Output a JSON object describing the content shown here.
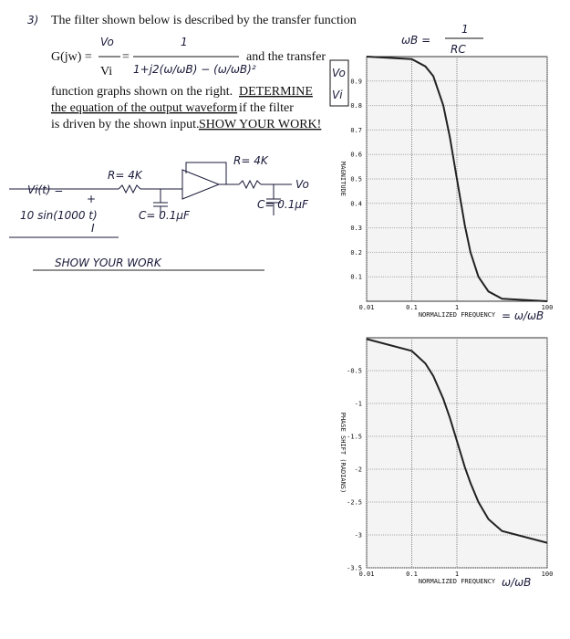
{
  "document": {
    "problem_number": "3)",
    "intro": "The filter shown below is described by the transfer function",
    "lhs": "G(jw) =",
    "ratio_top": "Vo",
    "ratio_bottom": "Vi",
    "numerator": "1",
    "denominator": "1+j2(ω/ωB) − (ω/ωB)²",
    "and_transfer": "and the transfer",
    "line2": "function graphs shown on the right.",
    "determine": "DETERMINE",
    "line3": "the equation of the output waveform",
    "line3b": "if the filter",
    "line4": "is driven by the shown input.",
    "show": "SHOW YOUR WORK!",
    "wb_lhs": "ωB =",
    "wb_num": "1",
    "wb_den": "RC",
    "side_top": "Vo",
    "side_bottom": "Vi",
    "circuit": {
      "r1": "R= 4K",
      "r2": "R= 4K",
      "c1": "C= 0.1μF",
      "c2": "C= 0.1μF",
      "vi": "Vi(t) =",
      "vi_expr": "10 sin(1000 t)",
      "vo": "Vo",
      "plus": "+",
      "ground_label": "I"
    },
    "show_your_work": "SHOW YOUR WORK"
  },
  "chart_data": [
    {
      "type": "line",
      "y_label": "MAGNITUDE",
      "x_label": "NORMALIZED FREQUENCY",
      "annotation": "= ω/ωB",
      "x": [
        0.01,
        0.1,
        0.2,
        0.3,
        0.5,
        0.7,
        1,
        1.5,
        2,
        3,
        5,
        10,
        100
      ],
      "values": [
        1,
        0.99,
        0.96,
        0.92,
        0.8,
        0.67,
        0.5,
        0.31,
        0.2,
        0.1,
        0.04,
        0.01,
        0
      ],
      "xlim": [
        0.01,
        100
      ],
      "ylim": [
        0,
        1
      ],
      "log_x": true,
      "grid": true,
      "color": "#222222",
      "xticks": [
        0.01,
        0.1,
        1,
        100
      ],
      "yticks": [
        0.1,
        0.2,
        0.3,
        0.4,
        0.5,
        0.6,
        0.7,
        0.8,
        0.9
      ]
    },
    {
      "type": "line",
      "y_label": "PHASE SHIFT (RADIANS)",
      "x_label": "NORMALIZED FREQUENCY",
      "annotation": "ω/ωB",
      "x": [
        0.01,
        0.1,
        0.2,
        0.3,
        0.5,
        0.7,
        1,
        1.5,
        2,
        3,
        5,
        10,
        100
      ],
      "values": [
        -0.02,
        -0.2,
        -0.39,
        -0.58,
        -0.93,
        -1.22,
        -1.57,
        -1.97,
        -2.21,
        -2.5,
        -2.76,
        -2.94,
        -3.12
      ],
      "xlim": [
        0.01,
        100
      ],
      "ylim": [
        -3.5,
        0
      ],
      "log_x": true,
      "grid": true,
      "color": "#222222",
      "xticks": [
        0.01,
        0.1,
        1,
        100
      ],
      "yticks": [
        -0.5,
        -1,
        -1.5,
        -2,
        -2.5,
        -3,
        -3.5
      ]
    }
  ]
}
